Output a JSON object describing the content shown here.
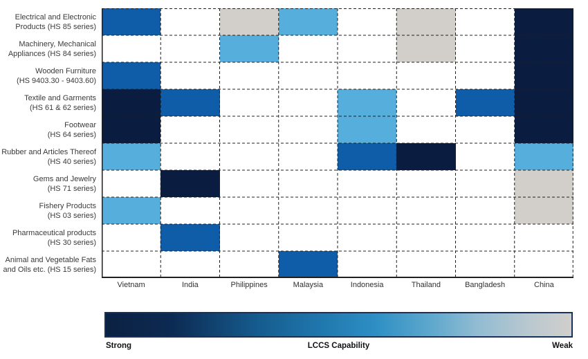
{
  "chart_data": {
    "type": "heatmap",
    "title": "",
    "xlabel": "",
    "ylabel": "",
    "x_categories": [
      "Vietnam",
      "India",
      "Philippines",
      "Malaysia",
      "Indonesia",
      "Thailand",
      "Bangladesh",
      "China"
    ],
    "y_categories": [
      [
        "Electrical and Electronic",
        "Products (HS 85 series)"
      ],
      [
        "Machinery, Mechanical",
        "Appliances (HS 84 series)"
      ],
      [
        "Wooden Furniture",
        "(HS 9403.30 - 9403.60)"
      ],
      [
        "Textile and Garments",
        "(HS 61 & 62 series)"
      ],
      [
        "Footwear",
        "(HS 64 series)"
      ],
      [
        "Rubber and Articles Thereof",
        "(HS 40 series)"
      ],
      [
        "Gems and Jewelry",
        "(HS 71 series)"
      ],
      [
        "Fishery Products",
        "(HS 03 series)"
      ],
      [
        "Pharmaceutical products",
        "(HS 30 series)"
      ],
      [
        "Animal and Vegetable Fats",
        "and Oils etc. (HS 15 series)"
      ]
    ],
    "levels_order": [
      "strong",
      "medium",
      "light",
      "weak"
    ],
    "palette": {
      "strong": "#0a1d41",
      "medium": "#0f5ca8",
      "light": "#55aedc",
      "weak": "#d2cfcb",
      "none": "#ffffff"
    },
    "matrix": [
      [
        "medium",
        null,
        "weak",
        "light",
        null,
        "weak",
        null,
        "strong"
      ],
      [
        null,
        null,
        "light",
        null,
        null,
        "weak",
        null,
        "strong"
      ],
      [
        "medium",
        null,
        null,
        null,
        null,
        null,
        null,
        "strong"
      ],
      [
        "strong",
        "medium",
        null,
        null,
        "light",
        null,
        "medium",
        "strong"
      ],
      [
        "strong",
        null,
        null,
        null,
        "light",
        null,
        null,
        "strong"
      ],
      [
        "light",
        null,
        null,
        null,
        "medium",
        "strong",
        null,
        "light"
      ],
      [
        null,
        "strong",
        null,
        null,
        null,
        null,
        null,
        "weak"
      ],
      [
        "light",
        null,
        null,
        null,
        null,
        null,
        null,
        "weak"
      ],
      [
        null,
        "medium",
        null,
        null,
        null,
        null,
        null,
        null
      ],
      [
        null,
        null,
        null,
        "medium",
        null,
        null,
        null,
        null
      ]
    ],
    "grid": "dashed",
    "legend_position": "bottom",
    "legend": {
      "left": "Strong",
      "title": "LCCS Capability",
      "right": "Weak"
    }
  }
}
